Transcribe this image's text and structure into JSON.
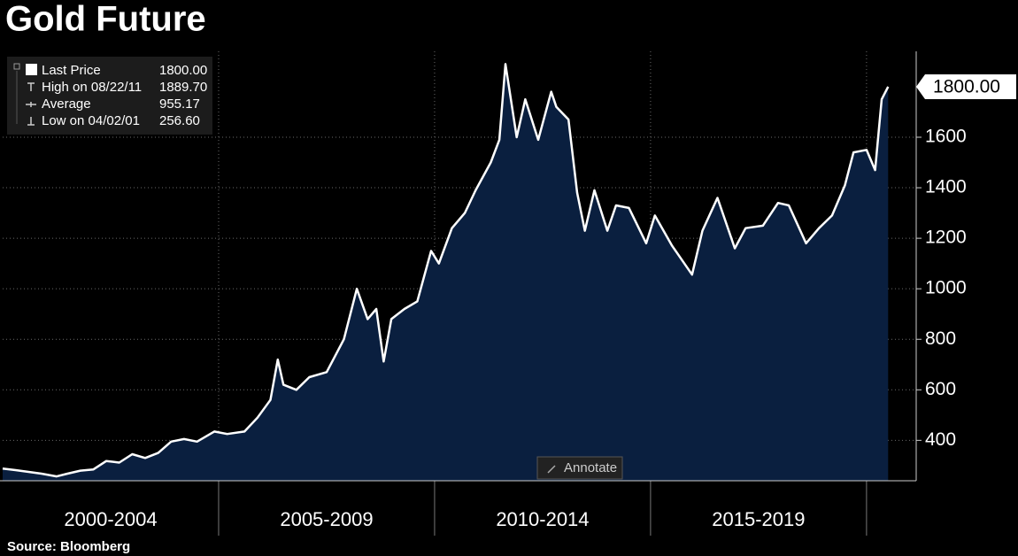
{
  "title": "Gold Future",
  "source": "Source:  Bloomberg",
  "annotate": "Annotate",
  "stats": [
    {
      "label": "Last Price",
      "value": "1800.00"
    },
    {
      "label": "High on 08/22/11",
      "value": "1889.70"
    },
    {
      "label": "Average",
      "value": "955.17"
    },
    {
      "label": "Low on 04/02/01",
      "value": "256.60"
    }
  ],
  "chart_data": {
    "type": "area",
    "color": "#ffffff",
    "fill": "#0a1f3f",
    "x": [
      2000.0,
      2000.3,
      2000.6,
      2000.9,
      2001.25,
      2001.5,
      2001.8,
      2002.1,
      2002.4,
      2002.7,
      2003.0,
      2003.3,
      2003.6,
      2003.9,
      2004.2,
      2004.5,
      2004.9,
      2005.2,
      2005.6,
      2005.9,
      2006.2,
      2006.37,
      2006.5,
      2006.8,
      2007.1,
      2007.5,
      2007.9,
      2008.2,
      2008.45,
      2008.65,
      2008.82,
      2009.0,
      2009.3,
      2009.6,
      2009.92,
      2010.1,
      2010.4,
      2010.7,
      2010.95,
      2011.3,
      2011.5,
      2011.64,
      2011.9,
      2012.1,
      2012.4,
      2012.7,
      2012.82,
      2013.1,
      2013.3,
      2013.48,
      2013.7,
      2014.0,
      2014.2,
      2014.5,
      2014.9,
      2015.1,
      2015.5,
      2015.96,
      2016.2,
      2016.55,
      2016.95,
      2017.2,
      2017.6,
      2017.95,
      2018.2,
      2018.6,
      2018.9,
      2019.2,
      2019.5,
      2019.7,
      2020.0,
      2020.2,
      2020.35,
      2020.5
    ],
    "values": [
      288,
      282,
      275,
      268,
      257,
      268,
      280,
      285,
      318,
      312,
      345,
      330,
      350,
      395,
      405,
      395,
      435,
      425,
      435,
      490,
      560,
      720,
      620,
      600,
      650,
      670,
      800,
      1000,
      880,
      920,
      712,
      880,
      920,
      950,
      1150,
      1100,
      1240,
      1300,
      1390,
      1500,
      1590,
      1889.7,
      1600,
      1750,
      1590,
      1780,
      1720,
      1670,
      1380,
      1230,
      1390,
      1230,
      1330,
      1320,
      1180,
      1290,
      1170,
      1056,
      1230,
      1360,
      1160,
      1240,
      1250,
      1340,
      1330,
      1180,
      1240,
      1290,
      1410,
      1540,
      1550,
      1470,
      1750,
      1800
    ],
    "xlim": [
      2000,
      2021.15
    ],
    "xticks": [
      {
        "value": 2000,
        "label": "2000-2004"
      },
      {
        "value": 2005,
        "label": "2005-2009"
      },
      {
        "value": 2010,
        "label": "2010-2014"
      },
      {
        "value": 2015,
        "label": "2015-2019"
      }
    ],
    "ylim": [
      240,
      1940
    ],
    "yticks": [
      400,
      600,
      800,
      1000,
      1200,
      1400,
      1600
    ],
    "grid": true
  }
}
